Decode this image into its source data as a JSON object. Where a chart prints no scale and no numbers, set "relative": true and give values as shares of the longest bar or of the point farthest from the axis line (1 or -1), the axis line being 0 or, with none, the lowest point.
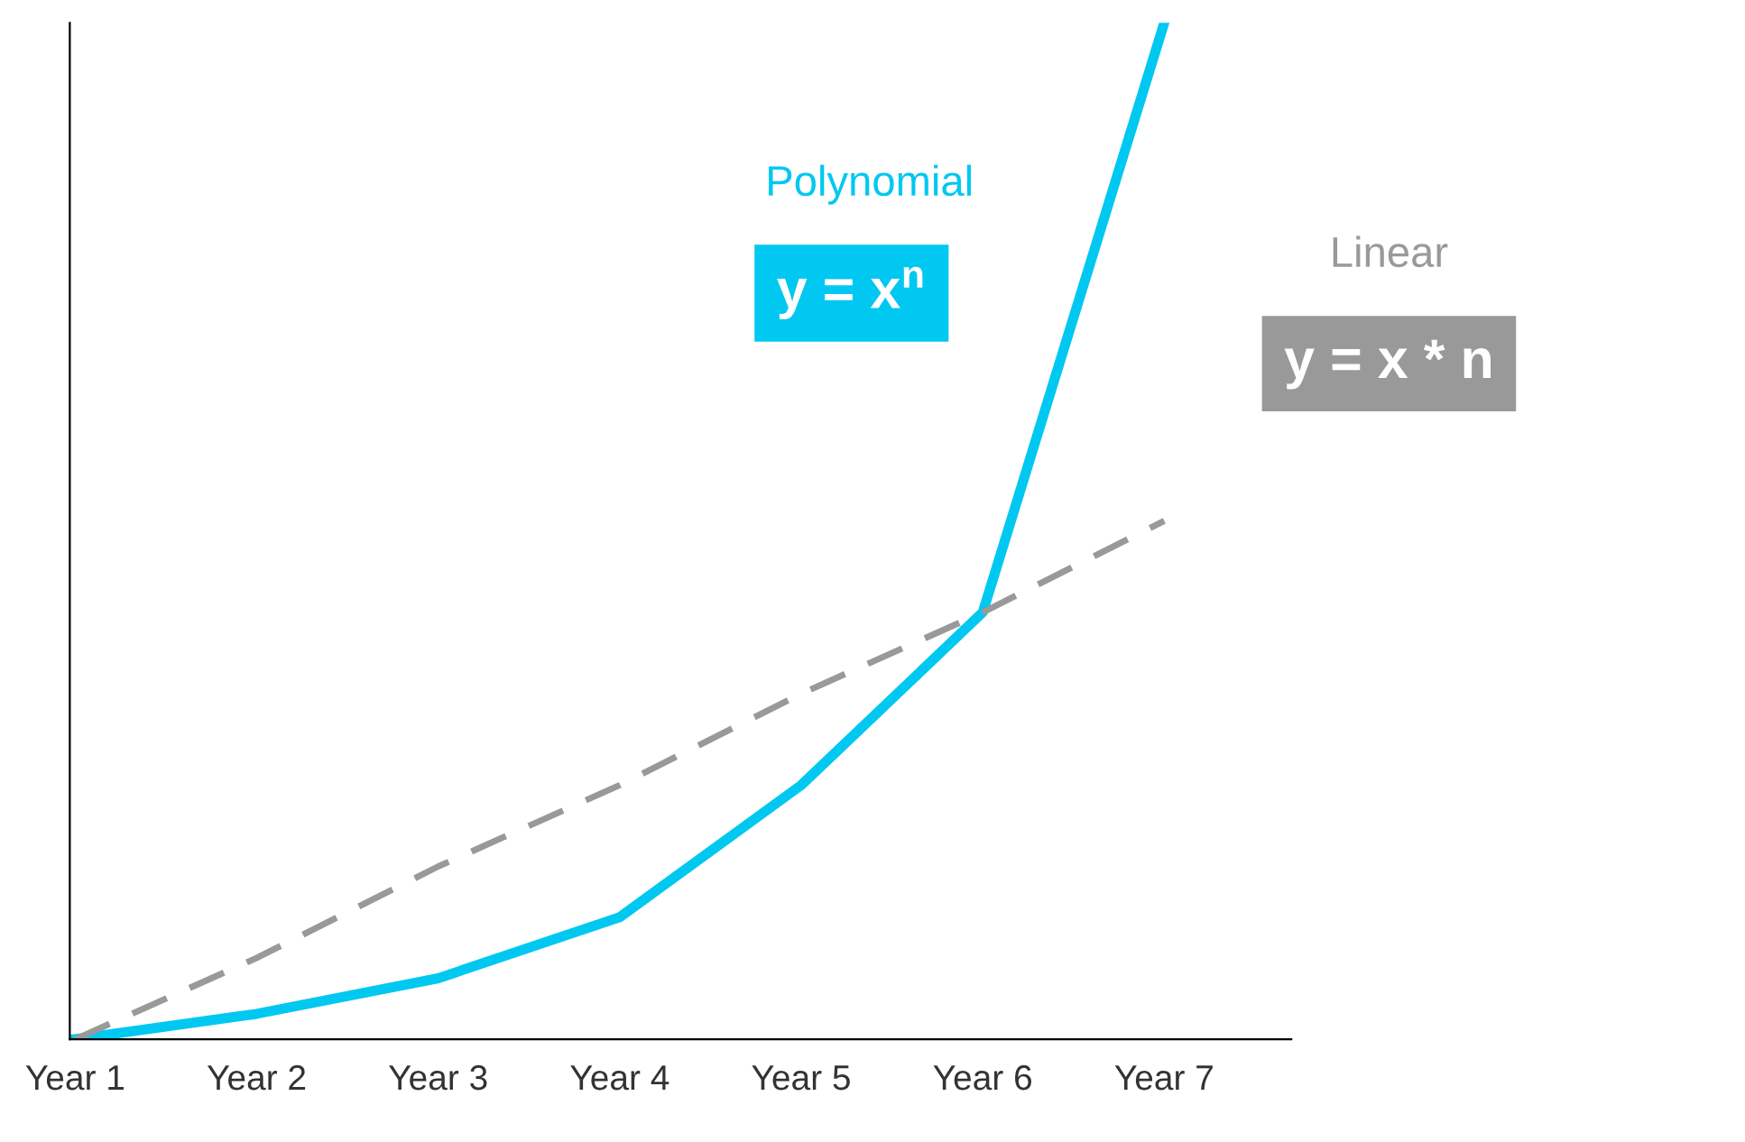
{
  "chart_data": {
    "type": "line",
    "relative": true,
    "categories": [
      "Year 1",
      "Year 2",
      "Year 3",
      "Year 4",
      "Year 5",
      "Year 6",
      "Year 7"
    ],
    "series": [
      {
        "name": "Polynomial",
        "color": "#00c8f0",
        "line_style": "solid",
        "values": [
          0,
          0.025,
          0.06,
          0.12,
          0.25,
          0.42,
          1.0
        ]
      },
      {
        "name": "Linear",
        "color": "#999999",
        "line_style": "dashed",
        "values": [
          0,
          0.08,
          0.17,
          0.25,
          0.34,
          0.42,
          0.51
        ]
      }
    ],
    "annotations": [
      "y = x$^{n}$",
      "y = x * n"
    ],
    "grid": false,
    "legend": false,
    "marker": "none"
  }
}
